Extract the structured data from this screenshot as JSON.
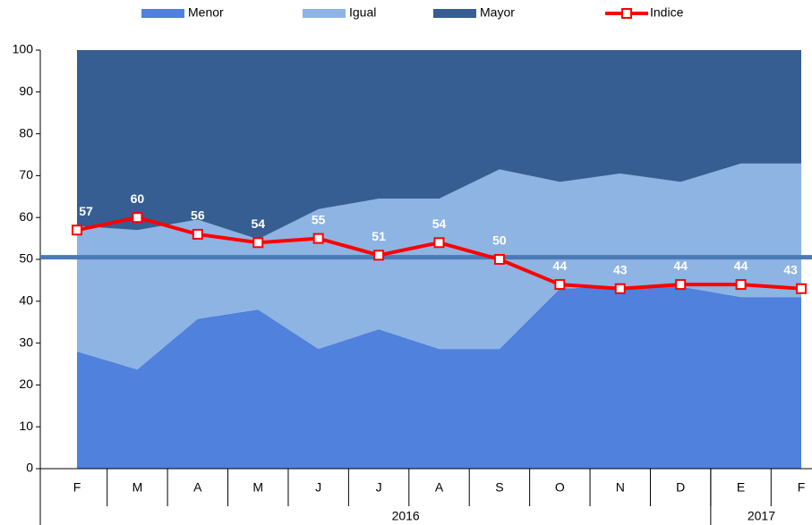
{
  "chart_data": {
    "type": "stacked_area_line",
    "categories": [
      "F",
      "M",
      "A",
      "M",
      "J",
      "J",
      "A",
      "S",
      "O",
      "N",
      "D",
      "E",
      "F"
    ],
    "groups": [
      {
        "label": "2016",
        "start": 0,
        "end": 11
      },
      {
        "label": "2017",
        "start": 11,
        "end": 12
      }
    ],
    "series": [
      {
        "name": "Menor",
        "color": "#4f81dd",
        "values": [
          28,
          23.7,
          35.8,
          38,
          28.6,
          33.3,
          28.6,
          28.6,
          43,
          43.5,
          43.5,
          41,
          41
        ]
      },
      {
        "name": "Igual",
        "color": "#8eb4e3",
        "values": [
          30,
          33.3,
          23.7,
          16.8,
          33.4,
          31.2,
          35.9,
          42.9,
          25.5,
          27,
          25,
          31.9,
          31.9
        ]
      },
      {
        "name": "Mayor",
        "color": "#375e92",
        "values": [
          42,
          43,
          40.5,
          45.2,
          38,
          35.5,
          35.5,
          28.5,
          31.5,
          29.5,
          31.5,
          27.1,
          27.1
        ]
      }
    ],
    "line": {
      "name": "Indice",
      "color": "#ff0000",
      "values": [
        57,
        60,
        56,
        54,
        55,
        51,
        54,
        50,
        44,
        43,
        44,
        44,
        43
      ]
    },
    "reference_line": {
      "value": 50.5,
      "color": "#4a7ab5"
    },
    "ylim": [
      0,
      100
    ],
    "yticks": [
      0,
      10,
      20,
      30,
      40,
      50,
      60,
      70,
      80,
      90,
      100
    ]
  }
}
